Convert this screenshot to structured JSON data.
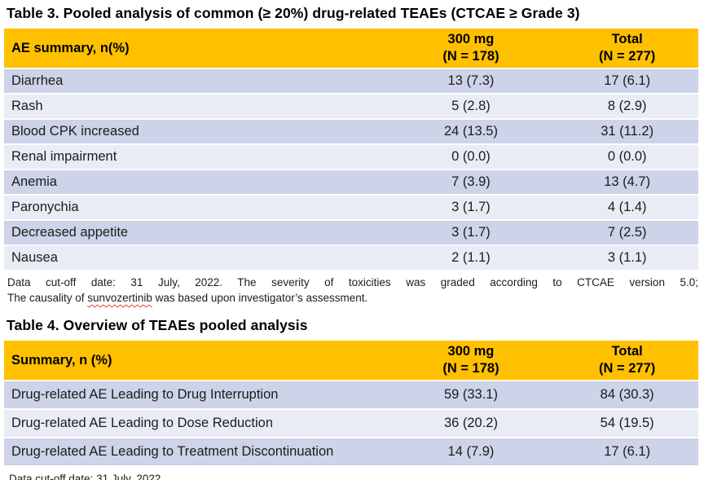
{
  "colors": {
    "header_bg": "#FFC000",
    "band_dark": "#CDD3E8",
    "band_light": "#E9EBF5",
    "spellcheck_squiggle": "#e03c31",
    "text": "#1c1c1c"
  },
  "table3": {
    "title": "Table 3. Pooled analysis of common (≥ 20%) drug-related TEAEs (CTCAE ≥ Grade 3)",
    "header": {
      "col1": "AE summary, n(%)",
      "col2_line1": "300 mg",
      "col2_line2": "(N = 178)",
      "col3_line1": "Total",
      "col3_line2": "(N = 277)"
    },
    "rows": [
      {
        "label": "Diarrhea",
        "v300": "13 (7.3)",
        "total": "17 (6.1)"
      },
      {
        "label": "Rash",
        "v300": "5 (2.8)",
        "total": "8 (2.9)"
      },
      {
        "label": "Blood CPK increased",
        "v300": "24 (13.5)",
        "total": "31 (11.2)"
      },
      {
        "label": "Renal impairment",
        "v300": "0 (0.0)",
        "total": "0 (0.0)"
      },
      {
        "label": "Anemia",
        "v300": "7 (3.9)",
        "total": "13 (4.7)"
      },
      {
        "label": "Paronychia",
        "v300": "3 (1.7)",
        "total": "4 (1.4)"
      },
      {
        "label": "Decreased appetite",
        "v300": "3 (1.7)",
        "total": "7 (2.5)"
      },
      {
        "label": "Nausea",
        "v300": "2 (1.1)",
        "total": "3 (1.1)"
      }
    ],
    "footnote_line1": "Data cut-off date: 31 July, 2022. The severity of toxicities was graded according to CTCAE version 5.0;",
    "footnote_line2_prefix": "The causality of ",
    "footnote_line2_word": "sunvozertinib",
    "footnote_line2_suffix": " was based upon investigator’s assessment."
  },
  "table4": {
    "title": "Table 4. Overview of TEAEs pooled analysis",
    "header": {
      "col1": "Summary, n (%)",
      "col2_line1": "300 mg",
      "col2_line2": "(N = 178)",
      "col3_line1": "Total",
      "col3_line2": "(N = 277)"
    },
    "rows": [
      {
        "label": "Drug-related AE Leading to Drug Interruption",
        "v300": "59 (33.1)",
        "total": "84 (30.3)"
      },
      {
        "label": "Drug-related AE Leading to Dose Reduction",
        "v300": "36 (20.2)",
        "total": "54 (19.5)"
      },
      {
        "label": "Drug-related AE Leading to Treatment Discontinuation",
        "v300": "14 (7.9)",
        "total": "17 (6.1)"
      }
    ],
    "footnote": "Data cut-off date: 31 July, 2022."
  }
}
